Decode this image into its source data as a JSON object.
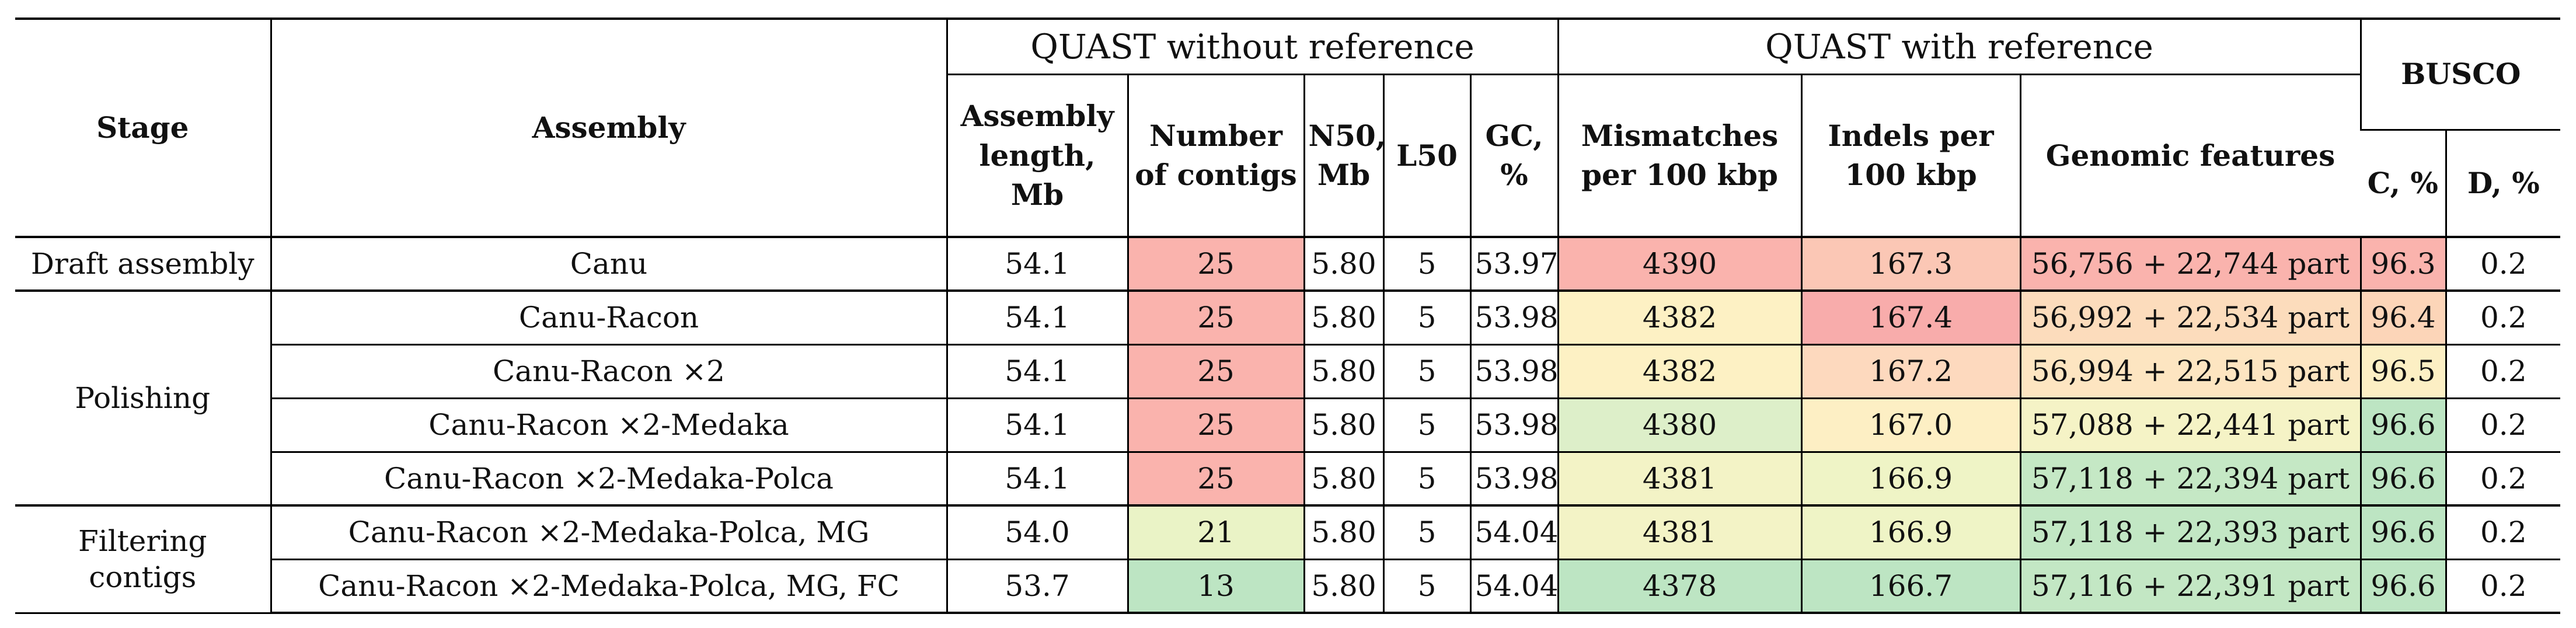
{
  "header": {
    "stage": "Stage",
    "assembly": "Assembly",
    "quast_without_ref": "QUAST without reference",
    "quast_with_ref": "QUAST with reference",
    "busco": "BUSCO",
    "assembly_length_lines": [
      "Assembly",
      "length,",
      "Mb"
    ],
    "number_of_contigs_lines": [
      "Number",
      "of contigs"
    ],
    "n50_lines": [
      "N50,",
      "Mb"
    ],
    "l50": "L50",
    "gc_lines": [
      "GC,",
      "%"
    ],
    "mismatches_lines": [
      "Mismatches",
      "per 100 kbp"
    ],
    "indels_lines": [
      "Indels per",
      "100 kbp"
    ],
    "genomic_features": "Genomic features",
    "c_pct": "C, %",
    "d_pct": "D, %"
  },
  "groups": {
    "draft": "Draft assembly",
    "polishing": "Polishing",
    "filtering_lines": [
      "Filtering",
      "contigs"
    ]
  },
  "rows": [
    {
      "assembly": "Canu",
      "length": "54.1",
      "contigs": "25",
      "n50": "5.80",
      "l50": "5",
      "gc": "53.97",
      "mismatches": "4390",
      "indels": "167.3",
      "features": "56,756 + 22,744 part",
      "c": "96.3",
      "d": "0.2",
      "colors": {
        "contigs": "#fab3ad",
        "mismatches": "#fab3ad",
        "indels": "#fbc7b5",
        "features": "#fab3ad",
        "c": "#fab3ad",
        "d": "#ffffff"
      }
    },
    {
      "assembly": "Canu-Racon",
      "length": "54.1",
      "contigs": "25",
      "n50": "5.80",
      "l50": "5",
      "gc": "53.98",
      "mismatches": "4382",
      "indels": "167.4",
      "features": "56,992 + 22,534 part",
      "c": "96.4",
      "d": "0.2",
      "colors": {
        "contigs": "#fab3ad",
        "mismatches": "#fdf1c4",
        "indels": "#f8acab",
        "features": "#fcdcbc",
        "c": "#fcd5b8",
        "d": "#ffffff"
      }
    },
    {
      "assembly": "Canu-Racon ×2",
      "length": "54.1",
      "contigs": "25",
      "n50": "5.80",
      "l50": "5",
      "gc": "53.98",
      "mismatches": "4382",
      "indels": "167.2",
      "features": "56,994 + 22,515 part",
      "c": "96.5",
      "d": "0.2",
      "colors": {
        "contigs": "#fab3ad",
        "mismatches": "#fdf1c4",
        "indels": "#fdd9be",
        "features": "#fde5c1",
        "c": "#fcefc4",
        "d": "#ffffff"
      }
    },
    {
      "assembly": "Canu-Racon ×2-Medaka",
      "length": "54.1",
      "contigs": "25",
      "n50": "5.80",
      "l50": "5",
      "gc": "53.98",
      "mismatches": "4380",
      "indels": "167.0",
      "features": "57,088 + 22,441 part",
      "c": "96.6",
      "d": "0.2",
      "colors": {
        "contigs": "#fab3ad",
        "mismatches": "#ddefc9",
        "indels": "#fdefc4",
        "features": "#f5f3c6",
        "c": "#bde5c3",
        "d": "#ffffff"
      }
    },
    {
      "assembly": "Canu-Racon ×2-Medaka-Polca",
      "length": "54.1",
      "contigs": "25",
      "n50": "5.80",
      "l50": "5",
      "gc": "53.98",
      "mismatches": "4381",
      "indels": "166.9",
      "features": "57,118 + 22,394 part",
      "c": "96.6",
      "d": "0.2",
      "colors": {
        "contigs": "#fab3ad",
        "mismatches": "#f3f3c6",
        "indels": "#eff4c6",
        "features": "#c5e8c5",
        "c": "#bde5c3",
        "d": "#ffffff"
      }
    },
    {
      "assembly": "Canu-Racon ×2-Medaka-Polca, MG",
      "length": "54.0",
      "contigs": "21",
      "n50": "5.80",
      "l50": "5",
      "gc": "54.04",
      "mismatches": "4381",
      "indels": "166.9",
      "features": "57,118 + 22,393 part",
      "c": "96.6",
      "d": "0.2",
      "colors": {
        "contigs": "#eaf3c6",
        "mismatches": "#f3f3c6",
        "indels": "#eff4c6",
        "features": "#c2e7c4",
        "c": "#bde5c3",
        "d": "#ffffff"
      }
    },
    {
      "assembly": "Canu-Racon ×2-Medaka-Polca, MG, FC",
      "length": "53.7",
      "contigs": "13",
      "n50": "5.80",
      "l50": "5",
      "gc": "54.04",
      "mismatches": "4378",
      "indels": "166.7",
      "features": "57,116 + 22,391 part",
      "c": "96.6",
      "d": "0.2",
      "colors": {
        "contigs": "#bde5c3",
        "mismatches": "#bde5c3",
        "indels": "#bde5c3",
        "features": "#c3e7c4",
        "c": "#bde5c3",
        "d": "#ffffff"
      }
    }
  ]
}
